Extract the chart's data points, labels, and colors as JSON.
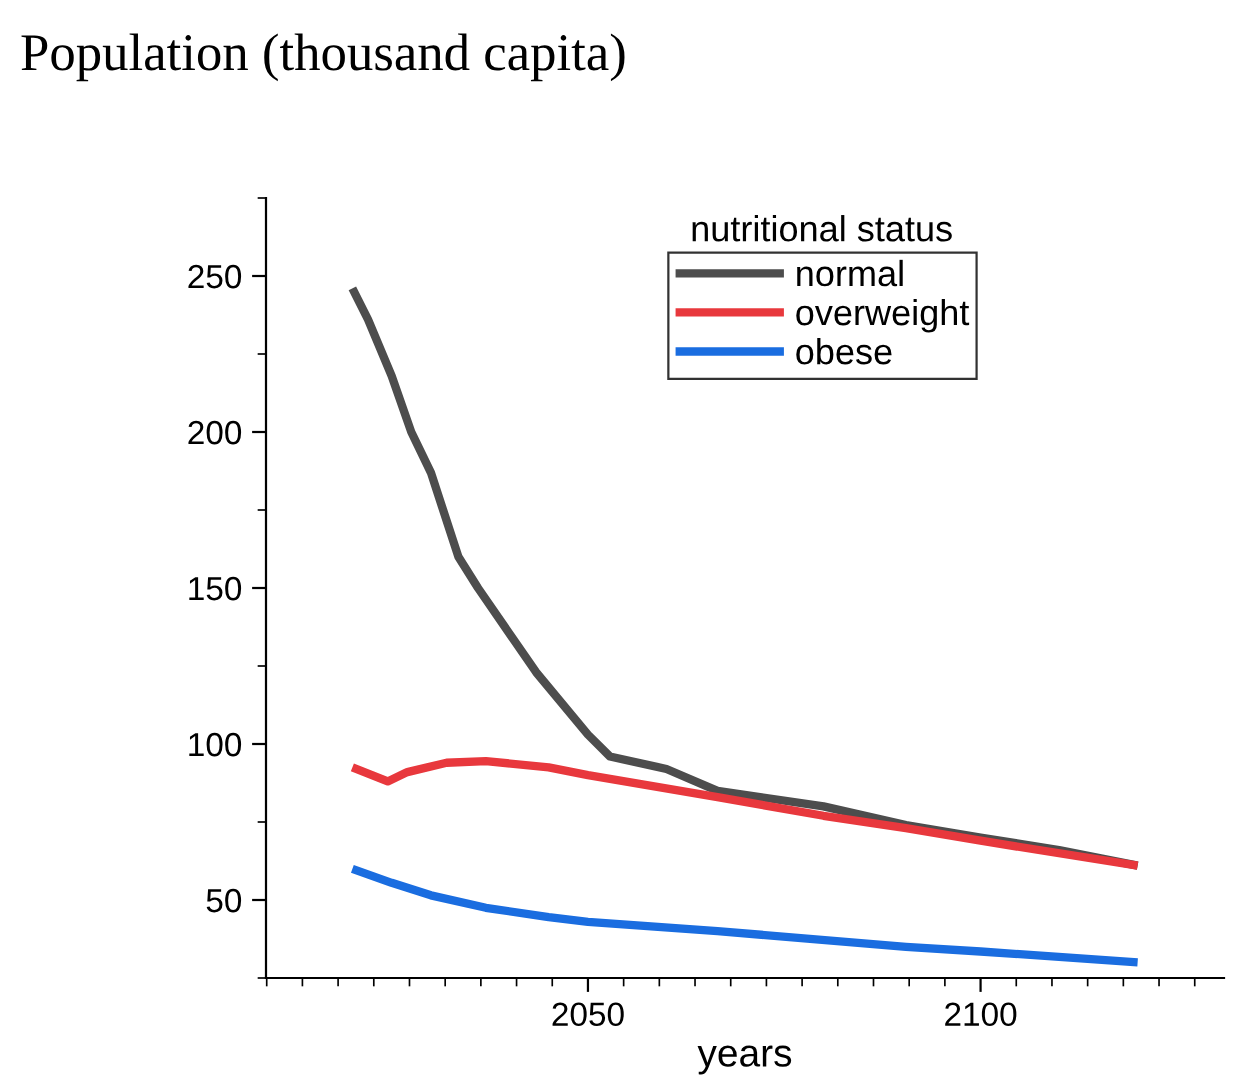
{
  "chart_data": {
    "type": "line",
    "title": "Population (thousand capita)",
    "xlabel": "years",
    "legend_title": "nutritional status",
    "xlim": [
      2009,
      2131
    ],
    "xticks": [
      2050,
      2100
    ],
    "ylim": [
      25,
      275
    ],
    "yticks": [
      50,
      100,
      150,
      200,
      250
    ],
    "grid": false,
    "legend": "top",
    "marker": "none",
    "line_style": "solid",
    "series": [
      {
        "name": "normal",
        "color": "#4d4d4d",
        "x": [
          2020,
          2022,
          2025,
          2027.5,
          2030,
          2033.5,
          2036,
          2043.4,
          2050,
          2052.8,
          2060,
          2066.5,
          2080,
          2090.5,
          2100,
          2110,
          2120
        ],
        "values": [
          246,
          236,
          218,
          200,
          187,
          160,
          150,
          123,
          103,
          96,
          92,
          85,
          80,
          74,
          70,
          66,
          61
        ]
      },
      {
        "name": "overweight",
        "color": "#e8383d",
        "x": [
          2020,
          2024.5,
          2027,
          2032,
          2037,
          2045,
          2050,
          2066.5,
          2080,
          2090.5,
          2100,
          2120
        ],
        "values": [
          92.5,
          88,
          91,
          94,
          94.5,
          92.5,
          90,
          83,
          77,
          73,
          69,
          61
        ]
      },
      {
        "name": "obese",
        "color": "#1a6de0",
        "x": [
          2020,
          2025,
          2030,
          2037,
          2045,
          2050,
          2066.5,
          2090.5,
          2100,
          2120
        ],
        "values": [
          60,
          55.5,
          51.5,
          47.5,
          44.5,
          43,
          40,
          35,
          33.5,
          30
        ]
      }
    ]
  }
}
